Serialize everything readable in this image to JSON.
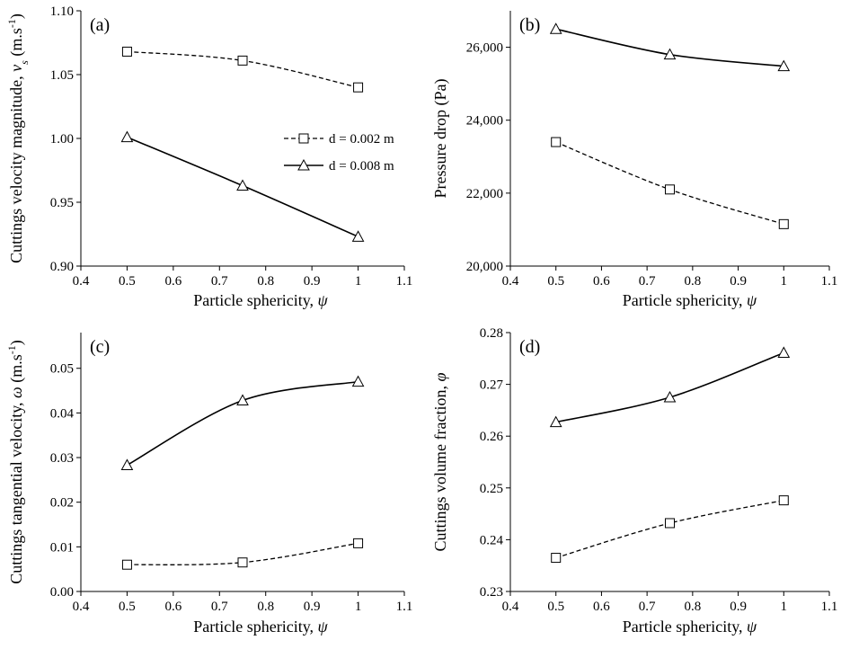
{
  "chart_data": [
    {
      "type": "line",
      "panel_label": "(a)",
      "xlabel": "Particle sphericity, ψ",
      "ylabel": "Cuttings velocity magnitude, v_s (m.s⁻¹)",
      "ylabel_main": "Cuttings velocity magnitude, ",
      "ylabel_var": "v",
      "ylabel_sub": "s",
      "ylabel_unit": " (m.s",
      "ylabel_sup": "-1",
      "ylabel_close": ")",
      "xlim": [
        0.4,
        1.1
      ],
      "ylim": [
        0.9,
        1.1
      ],
      "xticks": [
        "0.4",
        "0.5",
        "0.6",
        "0.7",
        "0.8",
        "0.9",
        "1",
        "1.1"
      ],
      "yticks": [
        "0.90",
        "0.95",
        "1.00",
        "1.05",
        "1.10"
      ],
      "x": [
        0.5,
        0.75,
        1.0
      ],
      "series": [
        {
          "name": "d = 0.002 m",
          "values": [
            1.068,
            1.061,
            1.04
          ],
          "marker": "square",
          "dash": true
        },
        {
          "name": "d = 0.008 m",
          "values": [
            1.001,
            0.963,
            0.923
          ],
          "marker": "triangle",
          "dash": false
        }
      ],
      "legend": true,
      "legend_position": "right-middle"
    },
    {
      "type": "line",
      "panel_label": "(b)",
      "xlabel": "Particle sphericity, ψ",
      "ylabel": "Pressure drop (Pa)",
      "xlim": [
        0.4,
        1.1
      ],
      "ylim": [
        20000,
        27000
      ],
      "xticks": [
        "0.4",
        "0.5",
        "0.6",
        "0.7",
        "0.8",
        "0.9",
        "1",
        "1.1"
      ],
      "yticks": [
        "20,000",
        "22,000",
        "24,000",
        "26,000"
      ],
      "ytick_values": [
        20000,
        22000,
        24000,
        26000
      ],
      "x": [
        0.5,
        0.75,
        1.0
      ],
      "series": [
        {
          "name": "d = 0.002 m",
          "values": [
            23400,
            22100,
            21150
          ],
          "marker": "square",
          "dash": true
        },
        {
          "name": "d = 0.008 m",
          "values": [
            26500,
            25800,
            25480
          ],
          "marker": "triangle",
          "dash": false
        }
      ],
      "legend": false
    },
    {
      "type": "line",
      "panel_label": "(c)",
      "xlabel": "Particle sphericity, ψ",
      "ylabel": "Cuttings tangential velocity, ω (m.s⁻¹)",
      "ylabel_main": "Cuttings tangential velocity, ",
      "ylabel_var": "ω",
      "ylabel_unit": " (m.s",
      "ylabel_sup": "-1",
      "ylabel_close": ")",
      "xlim": [
        0.4,
        1.1
      ],
      "ylim": [
        0.0,
        0.058
      ],
      "xticks": [
        "0.4",
        "0.5",
        "0.6",
        "0.7",
        "0.8",
        "0.9",
        "1",
        "1.1"
      ],
      "yticks": [
        "0.00",
        "0.01",
        "0.02",
        "0.03",
        "0.04",
        "0.05"
      ],
      "x": [
        0.5,
        0.75,
        1.0
      ],
      "series": [
        {
          "name": "d = 0.002 m",
          "values": [
            0.006,
            0.0065,
            0.0108
          ],
          "marker": "square",
          "dash": true
        },
        {
          "name": "d = 0.008 m",
          "values": [
            0.0283,
            0.0428,
            0.047
          ],
          "marker": "triangle",
          "dash": false
        }
      ],
      "legend": false
    },
    {
      "type": "line",
      "panel_label": "(d)",
      "xlabel": "Particle sphericity, ψ",
      "ylabel": "Cuttings volume fraction, φ",
      "xlim": [
        0.4,
        1.1
      ],
      "ylim": [
        0.23,
        0.28
      ],
      "xticks": [
        "0.4",
        "0.5",
        "0.6",
        "0.7",
        "0.8",
        "0.9",
        "1",
        "1.1"
      ],
      "yticks": [
        "0.23",
        "0.24",
        "0.25",
        "0.26",
        "0.27",
        "0.28"
      ],
      "x": [
        0.5,
        0.75,
        1.0
      ],
      "series": [
        {
          "name": "d = 0.002 m",
          "values": [
            0.2365,
            0.2432,
            0.2476
          ],
          "marker": "square",
          "dash": true
        },
        {
          "name": "d = 0.008 m",
          "values": [
            0.2627,
            0.2675,
            0.2761
          ],
          "marker": "triangle",
          "dash": false
        }
      ],
      "legend": false
    }
  ]
}
